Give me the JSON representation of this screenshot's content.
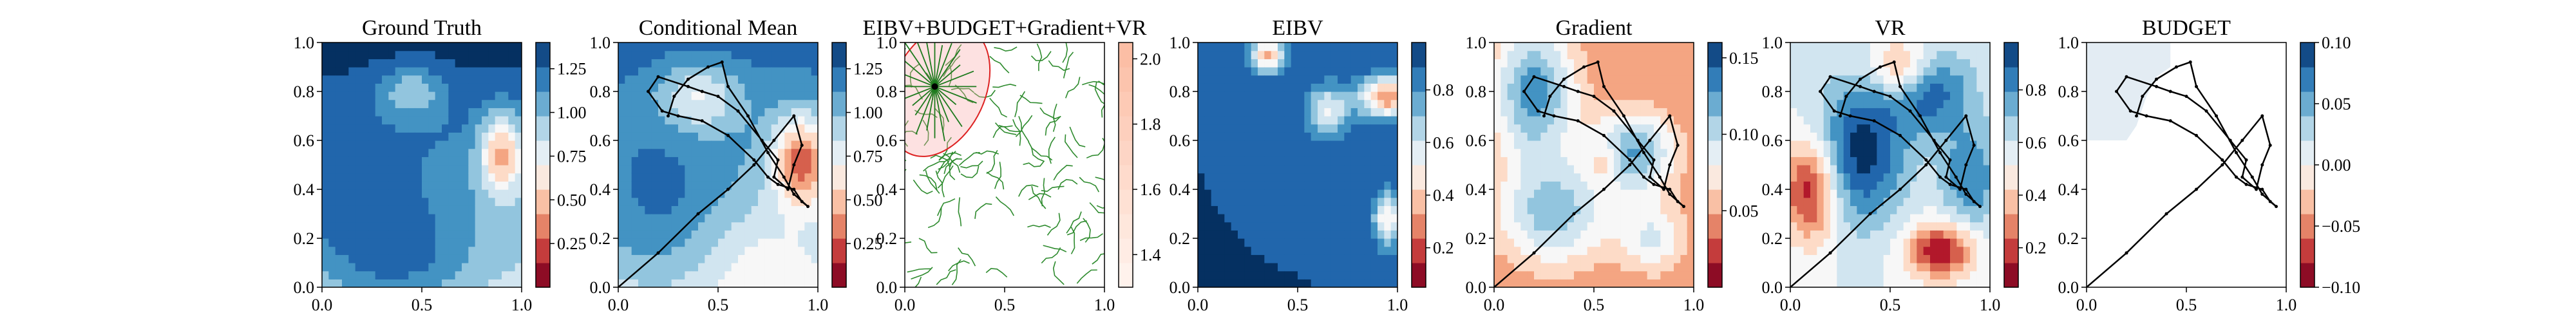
{
  "chart_data": [
    {
      "type": "heatmap",
      "title": "Ground Truth",
      "xlim": [
        0,
        1
      ],
      "ylim": [
        0,
        1
      ],
      "x_ticks": [
        "0.0",
        "0.5",
        "1.0"
      ],
      "y_ticks": [
        "0.0",
        "0.2",
        "0.4",
        "0.6",
        "0.8",
        "1.0"
      ],
      "colorbar": {
        "ticks": [
          "0.25",
          "0.50",
          "0.75",
          "1.00",
          "1.25"
        ],
        "ticks_values": [
          0.25,
          0.5,
          0.75,
          1.0,
          1.25
        ],
        "range": [
          0.0,
          1.4
        ]
      },
      "colormap": "RdBu"
    },
    {
      "type": "heatmap",
      "title": "Conditional Mean",
      "xlim": [
        0,
        1
      ],
      "ylim": [
        0,
        1
      ],
      "x_ticks": [
        "0.0",
        "0.5",
        "1.0"
      ],
      "y_ticks": [
        "0.0",
        "0.2",
        "0.4",
        "0.6",
        "0.8",
        "1.0"
      ],
      "colorbar": {
        "ticks": [
          "0.25",
          "0.50",
          "0.75",
          "1.00",
          "1.25"
        ],
        "ticks_values": [
          0.25,
          0.5,
          0.75,
          1.0,
          1.25
        ],
        "range": [
          0.0,
          1.4
        ]
      },
      "colormap": "RdBu",
      "trajectory": "black"
    },
    {
      "type": "scatter",
      "title": "EIBV+BUDGET+Gradient+VR",
      "xlim": [
        0,
        1
      ],
      "ylim": [
        0,
        1
      ],
      "x_ticks": [
        "0.0",
        "0.5",
        "1.0"
      ],
      "y_ticks": [
        "0.0",
        "0.2",
        "0.4",
        "0.6",
        "0.8",
        "1.0"
      ],
      "colorbar": {
        "ticks": [
          "1.4",
          "1.6",
          "1.8",
          "2.0"
        ],
        "ticks_values": [
          1.4,
          1.6,
          1.8,
          2.0
        ],
        "range": [
          1.3,
          2.05
        ]
      },
      "colormap": "Reds",
      "budget_ellipse": "red",
      "candidate_paths": "green"
    },
    {
      "type": "heatmap",
      "title": "EIBV",
      "xlim": [
        0,
        1
      ],
      "ylim": [
        0,
        1
      ],
      "x_ticks": [
        "0.0",
        "0.5",
        "1.0"
      ],
      "y_ticks": [
        "0.0",
        "0.2",
        "0.4",
        "0.6",
        "0.8",
        "1.0"
      ],
      "colorbar": {
        "ticks": [
          "0.2",
          "0.4",
          "0.6",
          "0.8"
        ],
        "ticks_values": [
          0.2,
          0.4,
          0.6,
          0.8
        ],
        "range": [
          0.05,
          0.98
        ]
      },
      "colormap": "RdBu"
    },
    {
      "type": "heatmap",
      "title": "Gradient",
      "xlim": [
        0,
        1
      ],
      "ylim": [
        0,
        1
      ],
      "x_ticks": [
        "0.0",
        "0.5",
        "1.0"
      ],
      "y_ticks": [
        "0.0",
        "0.2",
        "0.4",
        "0.6",
        "0.8",
        "1.0"
      ],
      "colorbar": {
        "ticks": [
          "0.05",
          "0.10",
          "0.15"
        ],
        "ticks_values": [
          0.05,
          0.1,
          0.15
        ],
        "range": [
          0.0,
          0.16
        ]
      },
      "colormap": "RdBu",
      "trajectory": "black"
    },
    {
      "type": "heatmap",
      "title": "VR",
      "xlim": [
        0,
        1
      ],
      "ylim": [
        0,
        1
      ],
      "x_ticks": [
        "0.0",
        "0.5",
        "1.0"
      ],
      "y_ticks": [
        "0.0",
        "0.2",
        "0.4",
        "0.6",
        "0.8",
        "1.0"
      ],
      "colorbar": {
        "ticks": [
          "0.2",
          "0.4",
          "0.6",
          "0.8"
        ],
        "ticks_values": [
          0.2,
          0.4,
          0.6,
          0.8
        ],
        "range": [
          0.05,
          0.98
        ]
      },
      "colormap": "RdBu",
      "trajectory": "black"
    },
    {
      "type": "heatmap",
      "title": "BUDGET",
      "xlim": [
        0,
        1
      ],
      "ylim": [
        0,
        1
      ],
      "x_ticks": [
        "0.0",
        "0.5",
        "1.0"
      ],
      "y_ticks": [
        "0.0",
        "0.2",
        "0.4",
        "0.6",
        "0.8",
        "1.0"
      ],
      "colorbar": {
        "ticks": [
          "−0.10",
          "−0.05",
          "0.00",
          "0.05",
          "0.10"
        ],
        "ticks_values": [
          -0.1,
          -0.05,
          0.0,
          0.05,
          0.1
        ],
        "range": [
          -0.1,
          0.1
        ]
      },
      "colormap": "RdBu",
      "trajectory": "black"
    }
  ],
  "trajectory": [
    [
      0.0,
      0.0
    ],
    [
      0.2,
      0.14
    ],
    [
      0.4,
      0.3
    ],
    [
      0.55,
      0.4
    ],
    [
      0.68,
      0.5
    ],
    [
      0.78,
      0.6
    ],
    [
      0.88,
      0.7
    ],
    [
      0.92,
      0.58
    ],
    [
      0.88,
      0.5
    ],
    [
      0.85,
      0.4
    ],
    [
      0.78,
      0.45
    ],
    [
      0.8,
      0.52
    ],
    [
      0.72,
      0.6
    ],
    [
      0.6,
      0.72
    ],
    [
      0.5,
      0.78
    ],
    [
      0.42,
      0.8
    ],
    [
      0.35,
      0.82
    ],
    [
      0.2,
      0.86
    ],
    [
      0.15,
      0.8
    ],
    [
      0.22,
      0.72
    ],
    [
      0.3,
      0.7
    ],
    [
      0.42,
      0.68
    ],
    [
      0.55,
      0.62
    ],
    [
      0.68,
      0.52
    ],
    [
      0.75,
      0.45
    ],
    [
      0.8,
      0.42
    ],
    [
      0.88,
      0.4
    ],
    [
      0.92,
      0.35
    ],
    [
      0.95,
      0.33
    ],
    [
      0.88,
      0.38
    ],
    [
      0.83,
      0.45
    ],
    [
      0.75,
      0.55
    ],
    [
      0.65,
      0.7
    ],
    [
      0.55,
      0.82
    ],
    [
      0.52,
      0.92
    ],
    [
      0.45,
      0.9
    ],
    [
      0.35,
      0.85
    ],
    [
      0.28,
      0.78
    ],
    [
      0.25,
      0.7
    ]
  ]
}
